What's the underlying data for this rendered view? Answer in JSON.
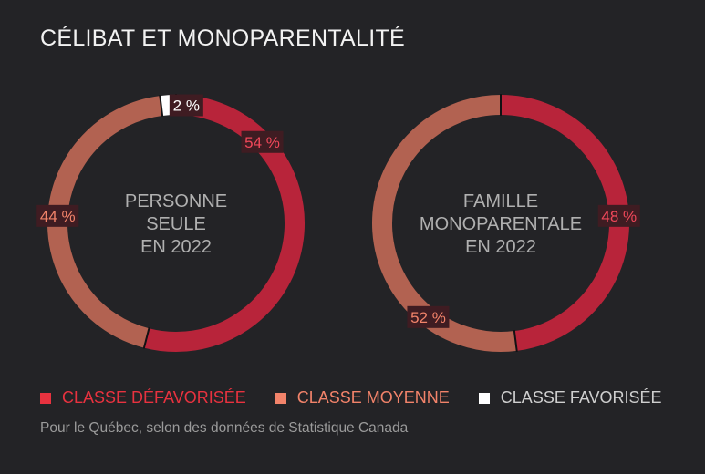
{
  "title": "CÉLIBAT ET MONOPARENTALITÉ",
  "chart_data": [
    {
      "type": "pie",
      "center_label": [
        "PERSONNE",
        "SEULE",
        "EN 2022"
      ],
      "slices": [
        {
          "category": "CLASSE DÉFAVORISÉE",
          "value": 54,
          "label": "54 %",
          "color": "#b8243a"
        },
        {
          "category": "CLASSE MOYENNE",
          "value": 44,
          "label": "44 %",
          "color": "#b26251"
        },
        {
          "category": "CLASSE FAVORISÉE",
          "value": 2,
          "label": "2 %",
          "color": "#ffffff"
        }
      ]
    },
    {
      "type": "pie",
      "center_label": [
        "FAMILLE",
        "MONOPARENTALE",
        "EN 2022"
      ],
      "slices": [
        {
          "category": "CLASSE DÉFAVORISÉE",
          "value": 48,
          "label": "48 %",
          "color": "#b8243a"
        },
        {
          "category": "CLASSE MOYENNE",
          "value": 52,
          "label": "52 %",
          "color": "#b26251"
        }
      ]
    }
  ],
  "legend": [
    {
      "label": "CLASSE DÉFAVORISÉE",
      "color": "#e8323f",
      "text_color": "#e8323f"
    },
    {
      "label": "CLASSE MOYENNE",
      "color": "#f2836a",
      "text_color": "#f2836a"
    },
    {
      "label": "CLASSE FAVORISÉE",
      "color": "#ffffff",
      "text_color": "#cfcfcf"
    }
  ],
  "source": "Pour le Québec, selon des données de Statistique Canada",
  "colors": {
    "background": "#232326",
    "label_box": "#3f1c22",
    "label_text_defavorisee": "#f0485a",
    "label_text_moyenne": "#f2836a",
    "label_text_favorisee": "#ffffff",
    "center_text": "#b0b0b0"
  }
}
